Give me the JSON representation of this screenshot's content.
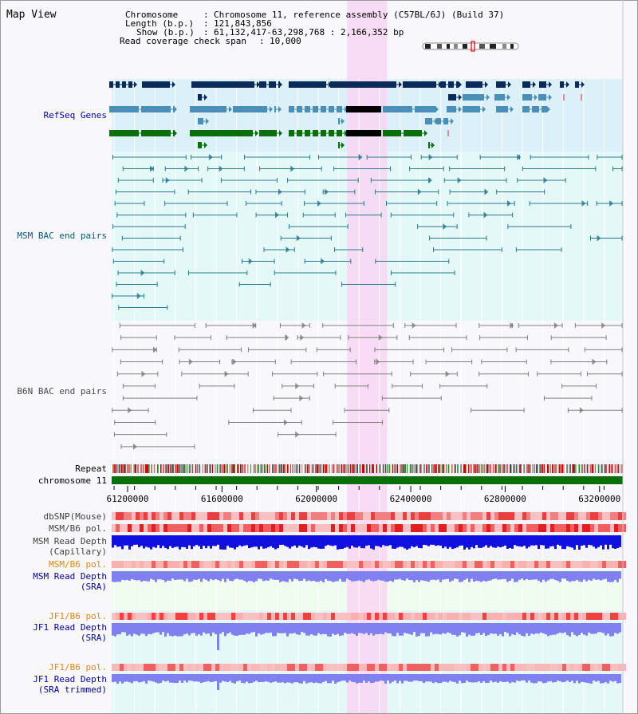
{
  "title": "Map View",
  "info": {
    "chromosome_key": "Chromosome",
    "chromosome_val": "Chromosome 11, reference assembly (C57BL/6J) (Build 37)",
    "length_key": "Length (b.p.)",
    "length_val": "121,843,856",
    "show_key": "Show (b.p.)",
    "show_val": "61,132,417-63,298,768 : 2,166,352 bp",
    "coverage_key": "Read coverage check span",
    "coverage_val": "10,000"
  },
  "tracks": {
    "refseq": "RefSeq Genes",
    "msm_bac": "MSM BAC end pairs",
    "b6n_bac": "B6N BAC end pairs",
    "repeat": "Repeat",
    "chromosome": "chromosome 11",
    "dbsnp": "dbSNP(Mouse)",
    "msm_pol1": "MSM/B6 pol.",
    "msm_depth_cap_1": "MSM Read Depth",
    "msm_depth_cap_2": "(Capillary)",
    "msm_pol2": "MSM/B6 pol.",
    "msm_depth_sra_1": "MSM Read Depth",
    "msm_depth_sra_2": "(SRA)",
    "jf1_pol1": "JF1/B6 pol.",
    "jf1_depth_sra_1": "JF1 Read Depth",
    "jf1_depth_sra_2": "(SRA)",
    "jf1_pol2": "JF1/B6 pol.",
    "jf1_depth_trim_1": "JF1 Read Depth",
    "jf1_depth_trim_2": "(SRA trimmed)"
  },
  "axis": {
    "ticks": [
      "61200000",
      "61600000",
      "62000000",
      "62400000",
      "62800000",
      "63200000"
    ],
    "tick_values": [
      61200000,
      61600000,
      62000000,
      62400000,
      62800000,
      63200000
    ],
    "view_start": 61132417,
    "view_end": 63298768,
    "highlight_start": 62130000,
    "highlight_end": 62300000
  },
  "colors": {
    "refseq_bg": "#dcf0fa",
    "msm_bg": "#e4f8f8",
    "b6n_bg": "#f8f8fc",
    "highlight": "#f8d6f2",
    "refseq_navy": "#0a2a5a",
    "refseq_blue": "#4b8fb8",
    "refseq_green": "#0a6e0a",
    "msm_pair": "#2a7a8e",
    "b6n_pair": "#808080",
    "chromosome_bar": "#0a6e0a",
    "msm_depth": "#1010e0",
    "sra_depth": "#8080f0",
    "label_blue": "#0000a0",
    "label_orange": "#e08a00",
    "label_teal": "#005a78"
  }
}
